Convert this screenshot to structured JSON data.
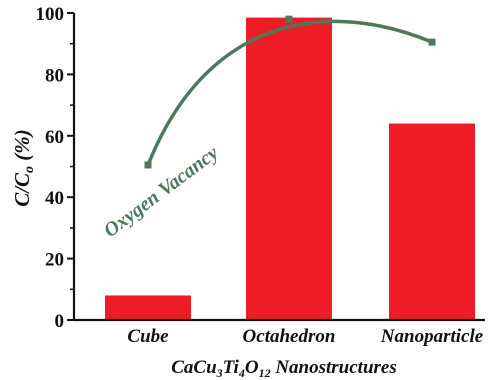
{
  "chart_data": {
    "type": "bar",
    "categories": [
      "Cube",
      "Octahedron",
      "Nanoparticle"
    ],
    "values": [
      8,
      98.5,
      64
    ],
    "ylim": [
      0,
      100
    ],
    "yticks": [
      0,
      20,
      40,
      60,
      80,
      100
    ],
    "ylabel": {
      "main": "C/C",
      "sub": "o",
      "tail": " (%)"
    },
    "xlabel": {
      "parts": [
        {
          "t": "CaCu",
          "sub": false
        },
        {
          "t": "3",
          "sub": true
        },
        {
          "t": "Ti",
          "sub": false
        },
        {
          "t": "4",
          "sub": true
        },
        {
          "t": "O",
          "sub": false
        },
        {
          "t": "12",
          "sub": true
        },
        {
          "t": " Nanostructures",
          "sub": false
        }
      ]
    },
    "bar_color": "#ee1c24",
    "overlay": {
      "type": "line",
      "color": "#4a7a5a",
      "points": [
        {
          "category": "Cube",
          "value": 50.5
        },
        {
          "category": "Octahedron",
          "value": 98
        },
        {
          "category": "Nanoparticle",
          "value": 90.5
        }
      ],
      "annotation": "Oxygen Vacancy"
    },
    "grid": false,
    "legend": "none"
  }
}
